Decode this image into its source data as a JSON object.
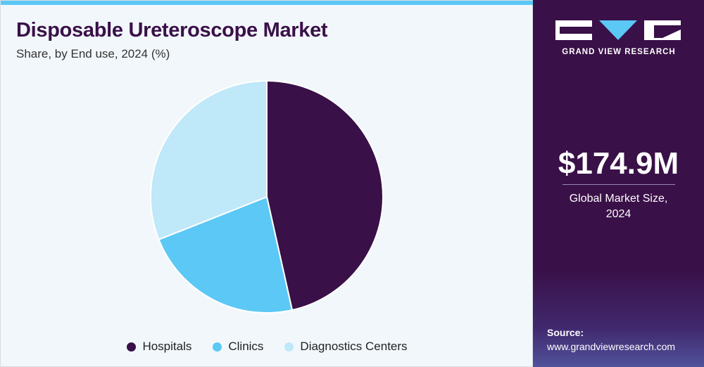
{
  "title": "Disposable Ureteroscope Market",
  "subtitle": "Share, by End use, 2024 (%)",
  "brand": {
    "name": "GRAND VIEW RESEARCH",
    "colors": {
      "panel": "#3a1048",
      "accent": "#5bc8f5"
    }
  },
  "market": {
    "value": "$174.9M",
    "caption_line1": "Global Market Size,",
    "caption_line2": "2024"
  },
  "source": {
    "label": "Source:",
    "url": "www.grandviewresearch.com"
  },
  "chart_data": {
    "type": "pie",
    "title": "Disposable Ureteroscope Market",
    "subtitle": "Share, by End use, 2024 (%)",
    "categories": [
      "Hospitals",
      "Clinics",
      "Diagnostics Centers"
    ],
    "values": [
      46.5,
      22.5,
      31.0
    ],
    "colors": [
      "#3a1048",
      "#5bc8f5",
      "#bfe8f9"
    ],
    "legend": "bottom"
  }
}
